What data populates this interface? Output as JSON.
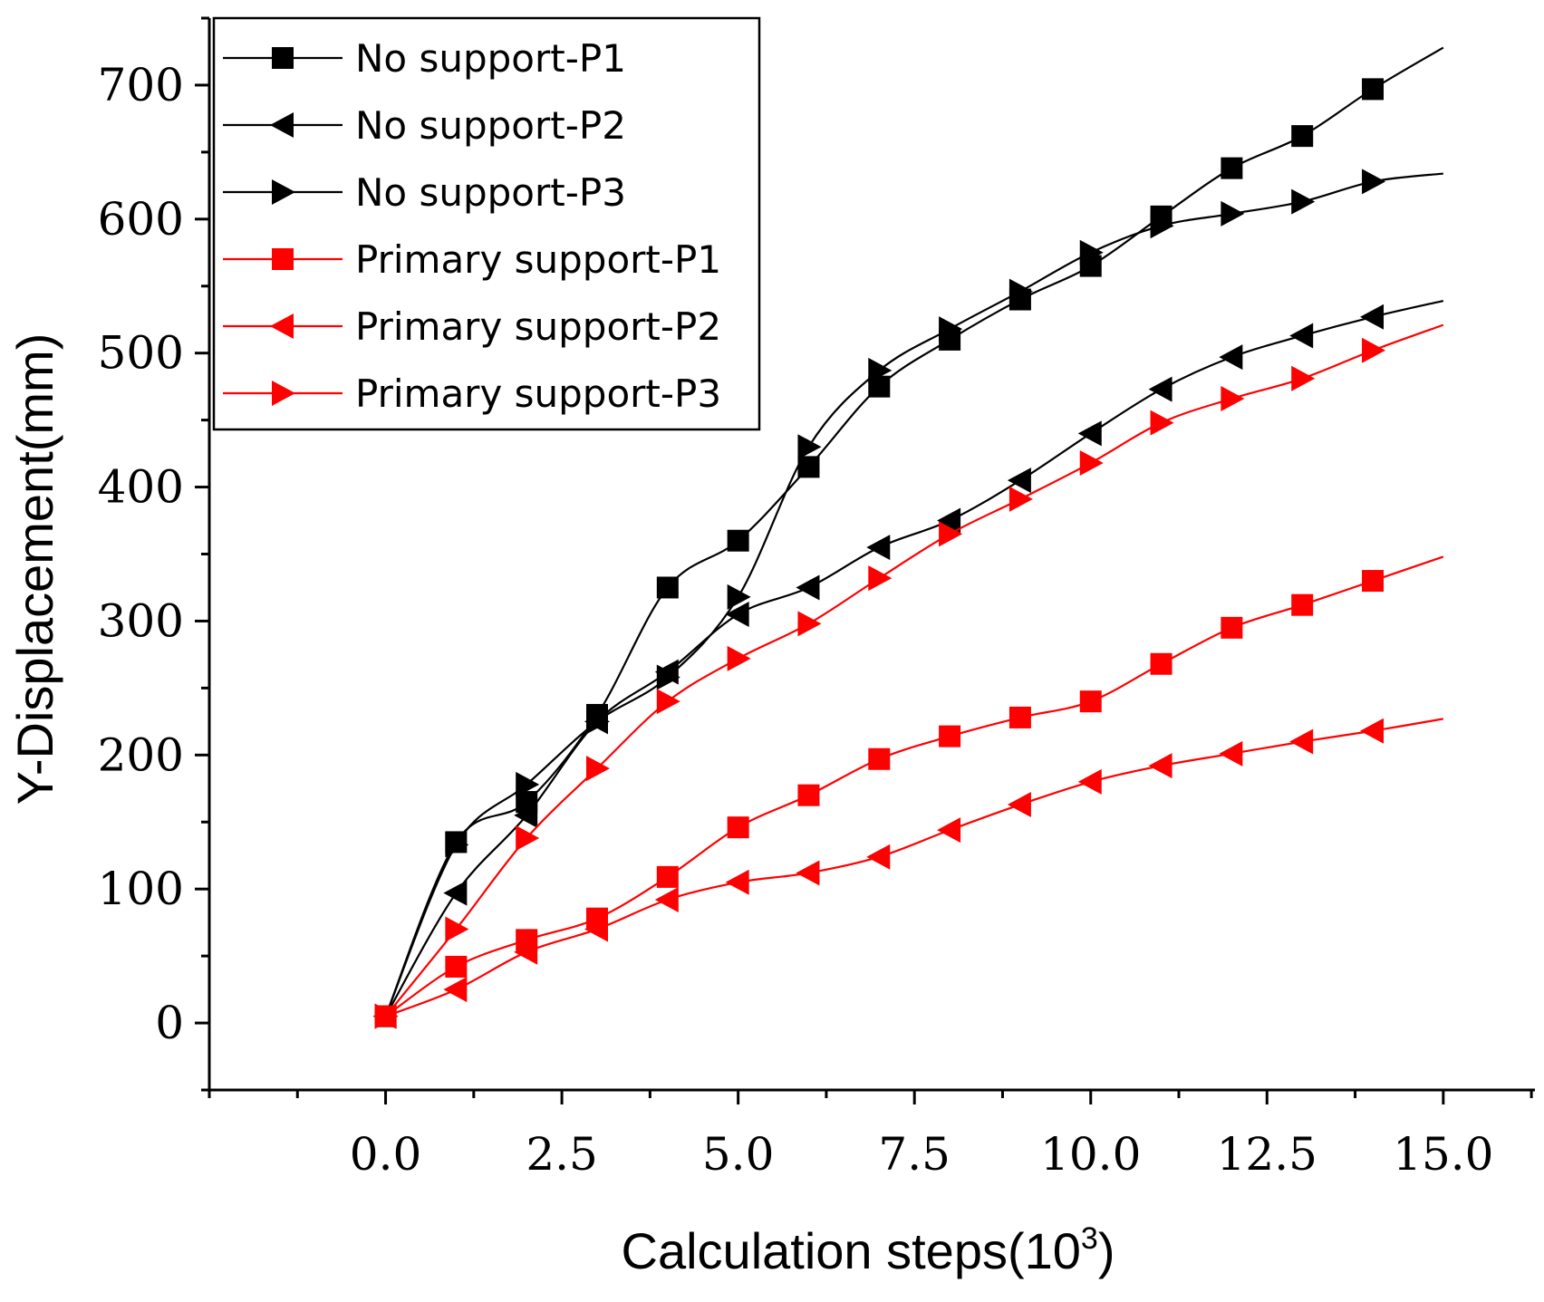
{
  "chart_data": {
    "type": "line",
    "title": "",
    "xlabel": "Calculation steps(10",
    "xlabel_sup": "3",
    "xlabel_close": ")",
    "ylabel": "Y-Displacement(mm)",
    "xlim": [
      -2.5,
      16.3
    ],
    "ylim": [
      -50,
      750
    ],
    "xticks": [
      0,
      2.5,
      5,
      7.5,
      10,
      12.5,
      15
    ],
    "xtick_labels": [
      "0.0",
      "2.5",
      "5.0",
      "7.5",
      "10.0",
      "12.5",
      "15.0"
    ],
    "yticks": [
      0,
      100,
      200,
      300,
      400,
      500,
      600,
      700
    ],
    "ytick_labels": [
      "0",
      "100",
      "200",
      "300",
      "400",
      "500",
      "600",
      "700"
    ],
    "legend_position": "top-left",
    "colors": {
      "black": "#000000",
      "red": "#ff0000"
    },
    "series": [
      {
        "name": "No support-P1",
        "color": "#000000",
        "marker": "square",
        "x": [
          0,
          1,
          2,
          3,
          4,
          5,
          6,
          7,
          8,
          9,
          10,
          11,
          12,
          13,
          14,
          15
        ],
        "y": [
          5,
          135,
          165,
          230,
          325,
          360,
          415,
          475,
          510,
          540,
          565,
          602,
          638,
          662,
          697,
          728
        ],
        "markers_x": [
          0,
          1,
          2,
          3,
          4,
          5,
          6,
          7,
          8,
          9,
          10,
          11,
          12,
          13,
          14
        ]
      },
      {
        "name": "No support-P2",
        "color": "#000000",
        "marker": "triangle-left",
        "x": [
          0,
          1,
          2,
          3,
          4,
          5,
          6,
          7,
          8,
          9,
          10,
          11,
          12,
          13,
          14,
          15
        ],
        "y": [
          5,
          97,
          155,
          225,
          262,
          305,
          325,
          355,
          375,
          405,
          440,
          473,
          497,
          513,
          527,
          539
        ],
        "markers_x": [
          0,
          1,
          2,
          3,
          4,
          5,
          6,
          7,
          8,
          9,
          10,
          11,
          12,
          13,
          14
        ]
      },
      {
        "name": "No support-P3",
        "color": "#000000",
        "marker": "triangle-right",
        "x": [
          0,
          1,
          2,
          3,
          4,
          5,
          6,
          7,
          8,
          9,
          10,
          11,
          12,
          13,
          14,
          15
        ],
        "y": [
          5,
          133,
          178,
          225,
          258,
          318,
          430,
          487,
          518,
          546,
          575,
          595,
          604,
          613,
          628,
          634
        ],
        "markers_x": [
          0,
          1,
          2,
          3,
          4,
          5,
          6,
          7,
          8,
          9,
          10,
          11,
          12,
          13,
          14
        ]
      },
      {
        "name": "Primary support-P1",
        "color": "#ff0000",
        "marker": "square",
        "x": [
          0,
          1,
          2,
          3,
          4,
          5,
          6,
          7,
          8,
          9,
          10,
          11,
          12,
          13,
          14,
          15
        ],
        "y": [
          5,
          42,
          62,
          78,
          109,
          146,
          170,
          197,
          214,
          228,
          240,
          268,
          295,
          312,
          330,
          348
        ],
        "markers_x": [
          0,
          1,
          2,
          3,
          4,
          5,
          6,
          7,
          8,
          9,
          10,
          11,
          12,
          13,
          14
        ]
      },
      {
        "name": "Primary support-P2",
        "color": "#ff0000",
        "marker": "triangle-left",
        "x": [
          0,
          1,
          2,
          3,
          4,
          5,
          6,
          7,
          8,
          9,
          10,
          11,
          12,
          13,
          14,
          15
        ],
        "y": [
          5,
          25,
          53,
          70,
          92,
          105,
          112,
          124,
          144,
          163,
          180,
          192,
          201,
          210,
          218,
          227
        ],
        "markers_x": [
          0,
          1,
          2,
          3,
          4,
          5,
          6,
          7,
          8,
          9,
          10,
          11,
          12,
          13,
          14
        ]
      },
      {
        "name": "Primary support-P3",
        "color": "#ff0000",
        "marker": "triangle-right",
        "x": [
          0,
          1,
          2,
          3,
          4,
          5,
          6,
          7,
          8,
          9,
          10,
          11,
          12,
          13,
          14,
          15
        ],
        "y": [
          5,
          70,
          138,
          190,
          240,
          272,
          298,
          332,
          365,
          391,
          418,
          448,
          466,
          481,
          502,
          521
        ],
        "markers_x": [
          0,
          1,
          2,
          3,
          4,
          5,
          6,
          7,
          8,
          9,
          10,
          11,
          12,
          13,
          14
        ]
      }
    ]
  }
}
